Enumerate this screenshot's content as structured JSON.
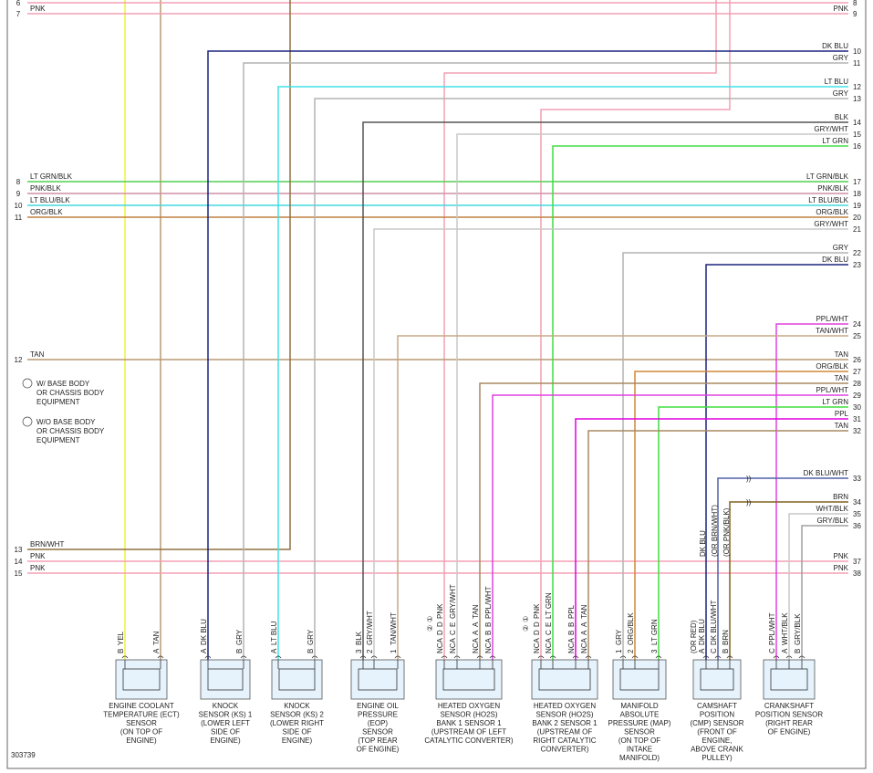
{
  "figure_id": "303739",
  "notes": [
    {
      "mark": "①",
      "lines": [
        "W/ BASE BODY",
        "OR CHASSIS BODY",
        "EQUIPMENT"
      ]
    },
    {
      "mark": "②",
      "lines": [
        "W/O BASE BODY",
        "OR CHASSIS BODY",
        "EQUIPMENT"
      ]
    }
  ],
  "left_wires": [
    {
      "pin": "6",
      "label": "PNK",
      "color": "#f4a0b4"
    },
    {
      "pin": "7",
      "label": "PNK",
      "color": "#f4a0b4"
    },
    {
      "pin": "8",
      "label": "LT GRN/BLK",
      "color": "#50d050"
    },
    {
      "pin": "9",
      "label": "PNK/BLK",
      "color": "#d090a8"
    },
    {
      "pin": "10",
      "label": "LT BLU/BLK",
      "color": "#40d8e0"
    },
    {
      "pin": "11",
      "label": "ORG/BLK",
      "color": "#c08040"
    },
    {
      "pin": "12",
      "label": "TAN",
      "color": "#b89870"
    },
    {
      "pin": "13",
      "label": "BRN/WHT",
      "color": "#907040"
    },
    {
      "pin": "14",
      "label": "PNK",
      "color": "#f4a0b4"
    },
    {
      "pin": "15",
      "label": "PNK",
      "color": "#f4a0b4"
    }
  ],
  "right_wires": [
    {
      "pin": "8",
      "label": "PNK",
      "color": "#f4a0b4"
    },
    {
      "pin": "9",
      "label": "PNK",
      "color": "#f4a0b4"
    },
    {
      "pin": "10",
      "label": "DK BLU",
      "color": "#1a237e"
    },
    {
      "pin": "11",
      "label": "GRY",
      "color": "#b4b4b4"
    },
    {
      "pin": "12",
      "label": "LT BLU",
      "color": "#40e0e8"
    },
    {
      "pin": "13",
      "label": "GRY",
      "color": "#b4b4b4"
    },
    {
      "pin": "14",
      "label": "BLK",
      "color": "#555555"
    },
    {
      "pin": "15",
      "label": "GRY/WHT",
      "color": "#c8c8c8"
    },
    {
      "pin": "16",
      "label": "LT GRN",
      "color": "#40dd40"
    },
    {
      "pin": "17",
      "label": "LT GRN/BLK",
      "color": "#50d050"
    },
    {
      "pin": "18",
      "label": "PNK/BLK",
      "color": "#d090a8"
    },
    {
      "pin": "19",
      "label": "LT BLU/BLK",
      "color": "#40d8e0"
    },
    {
      "pin": "20",
      "label": "ORG/BLK",
      "color": "#c08040"
    },
    {
      "pin": "21",
      "label": "GRY/WHT",
      "color": "#c8c8c8"
    },
    {
      "pin": "22",
      "label": "GRY",
      "color": "#b4b4b4"
    },
    {
      "pin": "23",
      "label": "DK BLU",
      "color": "#1a237e"
    },
    {
      "pin": "24",
      "label": "PPL/WHT",
      "color": "#e040e0"
    },
    {
      "pin": "25",
      "label": "TAN/WHT",
      "color": "#c8a888"
    },
    {
      "pin": "26",
      "label": "TAN",
      "color": "#b89870"
    },
    {
      "pin": "27",
      "label": "ORG/BLK",
      "color": "#d08838"
    },
    {
      "pin": "28",
      "label": "TAN",
      "color": "#a88860"
    },
    {
      "pin": "29",
      "label": "PPL/WHT",
      "color": "#e040e0"
    },
    {
      "pin": "30",
      "label": "LT GRN",
      "color": "#40dd40"
    },
    {
      "pin": "31",
      "label": "PPL",
      "color": "#e000e0"
    },
    {
      "pin": "32",
      "label": "TAN",
      "color": "#a88860"
    },
    {
      "pin": "33",
      "label": "DK BLU/WHT",
      "color": "#5060a8"
    },
    {
      "pin": "34",
      "label": "BRN",
      "color": "#806020"
    },
    {
      "pin": "35",
      "label": "WHT/BLK",
      "color": "#c8c8c8"
    },
    {
      "pin": "36",
      "label": "GRY/BLK",
      "color": "#a0a0a0"
    },
    {
      "pin": "37",
      "label": "PNK",
      "color": "#f4a0b4"
    },
    {
      "pin": "38",
      "label": "PNK",
      "color": "#f4a0b4"
    }
  ],
  "components": [
    {
      "label": [
        "ENGINE COOLANT",
        "TEMPERATURE (ECT)",
        "SENSOR",
        "(ON TOP OF",
        "ENGINE)"
      ],
      "pins": [
        {
          "pin": [
            "B"
          ],
          "wire": "YEL",
          "color": "#f0f040"
        },
        {
          "pin": [
            "A"
          ],
          "wire": "TAN",
          "color": "#b89870"
        }
      ]
    },
    {
      "label": [
        "KNOCK",
        "SENSOR (KS) 1",
        "(LOWER LEFT",
        "SIDE OF",
        "ENGINE)"
      ],
      "pins": [
        {
          "pin": [
            "A"
          ],
          "wire": "DK BLU",
          "color": "#1a237e"
        },
        {
          "pin": [
            "B"
          ],
          "wire": "GRY",
          "color": "#b4b4b4"
        }
      ]
    },
    {
      "label": [
        "KNOCK",
        "SENSOR (KS) 2",
        "(LOWER RIGHT",
        "SIDE OF",
        "ENGINE)"
      ],
      "pins": [
        {
          "pin": [
            "A"
          ],
          "wire": "LT BLU",
          "color": "#40e0e8"
        },
        {
          "pin": [
            "B"
          ],
          "wire": "GRY",
          "color": "#b4b4b4"
        }
      ]
    },
    {
      "label": [
        "ENGINE OIL",
        "PRESSURE",
        "(EOP)",
        "SENSOR",
        "(TOP REAR",
        "OF ENGINE)"
      ],
      "pins": [
        {
          "pin": [
            "3"
          ],
          "wire": "BLK",
          "color": "#555555"
        },
        {
          "pin": [
            "2"
          ],
          "wire": "GRY/WHT",
          "color": "#c8c8c8"
        },
        {
          "pin": [
            "1"
          ],
          "wire": "TAN/WHT",
          "color": "#c8a888"
        }
      ]
    },
    {
      "label": [
        "HEATED OXYGEN",
        "SENSOR (HO2S)",
        "BANK 1 SENSOR 1",
        "(UPSTREAM OF LEFT",
        "CATALYTIC CONVERTER)"
      ],
      "variant_marks": [
        "②",
        "①"
      ],
      "pins": [
        {
          "pin": [
            "D",
            "D"
          ],
          "wire": "PNK",
          "nca": "NCA",
          "color": "#f4a0b4"
        },
        {
          "pin": [
            "C",
            "E"
          ],
          "wire": "GRY/WHT",
          "nca": "NCA",
          "color": "#c8c8c8"
        },
        {
          "pin": [
            "A",
            "A"
          ],
          "wire": "TAN",
          "nca": "NCA",
          "color": "#a88860"
        },
        {
          "pin": [
            "B",
            "B"
          ],
          "wire": "PPL/WHT",
          "nca": "NCA",
          "color": "#e040e0"
        }
      ]
    },
    {
      "label": [
        "HEATED OXYGEN",
        "SENSOR (HO2S)",
        "BANK 2 SENSOR 1",
        "(UPSTREAM OF",
        "RIGHT CATALYTIC",
        "CONVERTER)"
      ],
      "variant_marks": [
        "②",
        "①"
      ],
      "pins": [
        {
          "pin": [
            "D",
            "D"
          ],
          "wire": "PNK",
          "nca": "NCA",
          "color": "#f4a0b4"
        },
        {
          "pin": [
            "C",
            "E"
          ],
          "wire": "LT GRN",
          "nca": "NCA",
          "color": "#40dd40"
        },
        {
          "pin": [
            "B",
            "B"
          ],
          "wire": "PPL",
          "nca": "NCA",
          "color": "#e000e0"
        },
        {
          "pin": [
            "A",
            "A"
          ],
          "wire": "TAN",
          "nca": "NCA",
          "color": "#a88860"
        }
      ]
    },
    {
      "label": [
        "MANIFOLD",
        "ABSOLUTE",
        "PRESSURE (MAP)",
        "SENSOR",
        "(ON TOP OF",
        "INTAKE",
        "MANIFOLD)"
      ],
      "pins": [
        {
          "pin": [
            "1"
          ],
          "wire": "GRY",
          "color": "#b4b4b4"
        },
        {
          "pin": [
            "2"
          ],
          "wire": "ORG/BLK",
          "color": "#d08838"
        },
        {
          "pin": [
            "3"
          ],
          "wire": "LT GRN",
          "color": "#40dd40"
        }
      ]
    },
    {
      "label": [
        "CAMSHAFT",
        "POSITION",
        "(CMP) SENSOR",
        "(FRONT OF",
        "ENGINE,",
        "ABOVE CRANK",
        "PULLEY)"
      ],
      "pins": [
        {
          "pin": [
            "A"
          ],
          "wire": "DK BLU",
          "wire_note": "(OR RED)",
          "color": "#1a237e"
        },
        {
          "pin": [
            "C"
          ],
          "wire": "DK BLU/WHT",
          "color": "#5060a8"
        },
        {
          "pin": [
            "B"
          ],
          "wire": "BRN",
          "color": "#806020"
        }
      ]
    },
    {
      "label": [
        "CRANKSHAFT",
        "POSITION SENSOR",
        "(RIGHT REAR",
        "OF ENGINE)"
      ],
      "pins": [
        {
          "pin": [
            "C"
          ],
          "wire": "PPL/WHT",
          "color": "#e040e0"
        },
        {
          "pin": [
            "A"
          ],
          "wire": "WHT/BLK",
          "color": "#c8c8c8"
        },
        {
          "pin": [
            "B"
          ],
          "wire": "GRY/BLK",
          "color": "#a0a0a0"
        }
      ]
    }
  ],
  "cmp_alternates": [
    "DK BLU",
    "(OR BRN/WHT)",
    "(OR PNK/BLK)"
  ]
}
